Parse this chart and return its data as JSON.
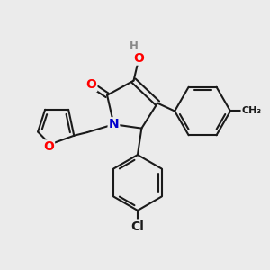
{
  "background_color": "#ebebeb",
  "bond_color": "#1a1a1a",
  "bond_width": 1.5,
  "atom_colors": {
    "O": "#ff0000",
    "N": "#0000cc",
    "Cl": "#1a1a1a",
    "C": "#1a1a1a",
    "H": "#888888"
  },
  "font_size_atom": 10,
  "font_size_small": 8.5
}
